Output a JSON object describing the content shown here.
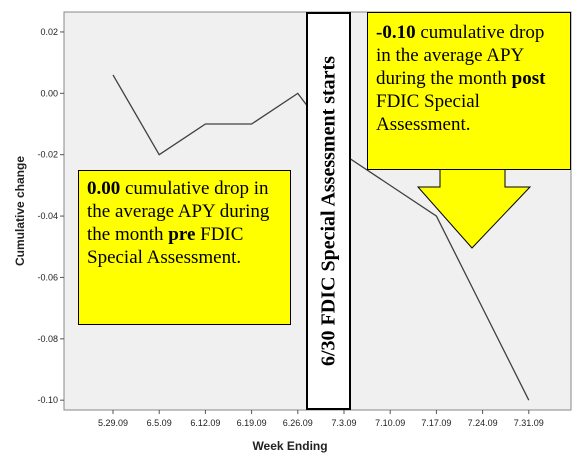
{
  "chart_data": {
    "type": "line",
    "x_label": "Week Ending",
    "y_label": "Cumulative change",
    "categories": [
      "5.29.09",
      "6.5.09",
      "6.12.09",
      "6.19.09",
      "6.26.09",
      "7.3.09",
      "7.10.09",
      "7.17.09",
      "7.24.09",
      "7.31.09"
    ],
    "values": [
      0.006,
      -0.02,
      -0.01,
      -0.01,
      0.0,
      -0.02,
      -0.03,
      -0.04,
      -0.07,
      -0.1
    ],
    "color": "#404040",
    "ylim": [
      -0.1032,
      0.0265
    ],
    "yticks": [
      0.02,
      {
        "value": 0,
        "label": "0.00"
      },
      -0.02,
      -0.04,
      -0.06,
      -0.08,
      {
        "value": -0.1,
        "label": "-0.10"
      }
    ],
    "annotations": [
      {
        "segments": [
          {
            "text": "0.00",
            "bold": true
          },
          {
            "text": " cumulative drop in the average APY during the month ",
            "bold": false
          },
          {
            "text": "pre",
            "bold": true
          },
          {
            "text": " FDIC Special Assessment.",
            "bold": false
          }
        ]
      },
      {
        "segments": [
          {
            "text": "-0.10",
            "bold": true
          },
          {
            "text": " cumulative drop in the average APY during the month ",
            "bold": false
          },
          {
            "text": "post",
            "bold": true
          },
          {
            "text": " FDIC Special Assessment.",
            "bold": false
          }
        ]
      },
      {
        "segments": [
          {
            "text": "6/30 FDIC Special Assessment starts",
            "bold": true
          }
        ]
      }
    ]
  }
}
